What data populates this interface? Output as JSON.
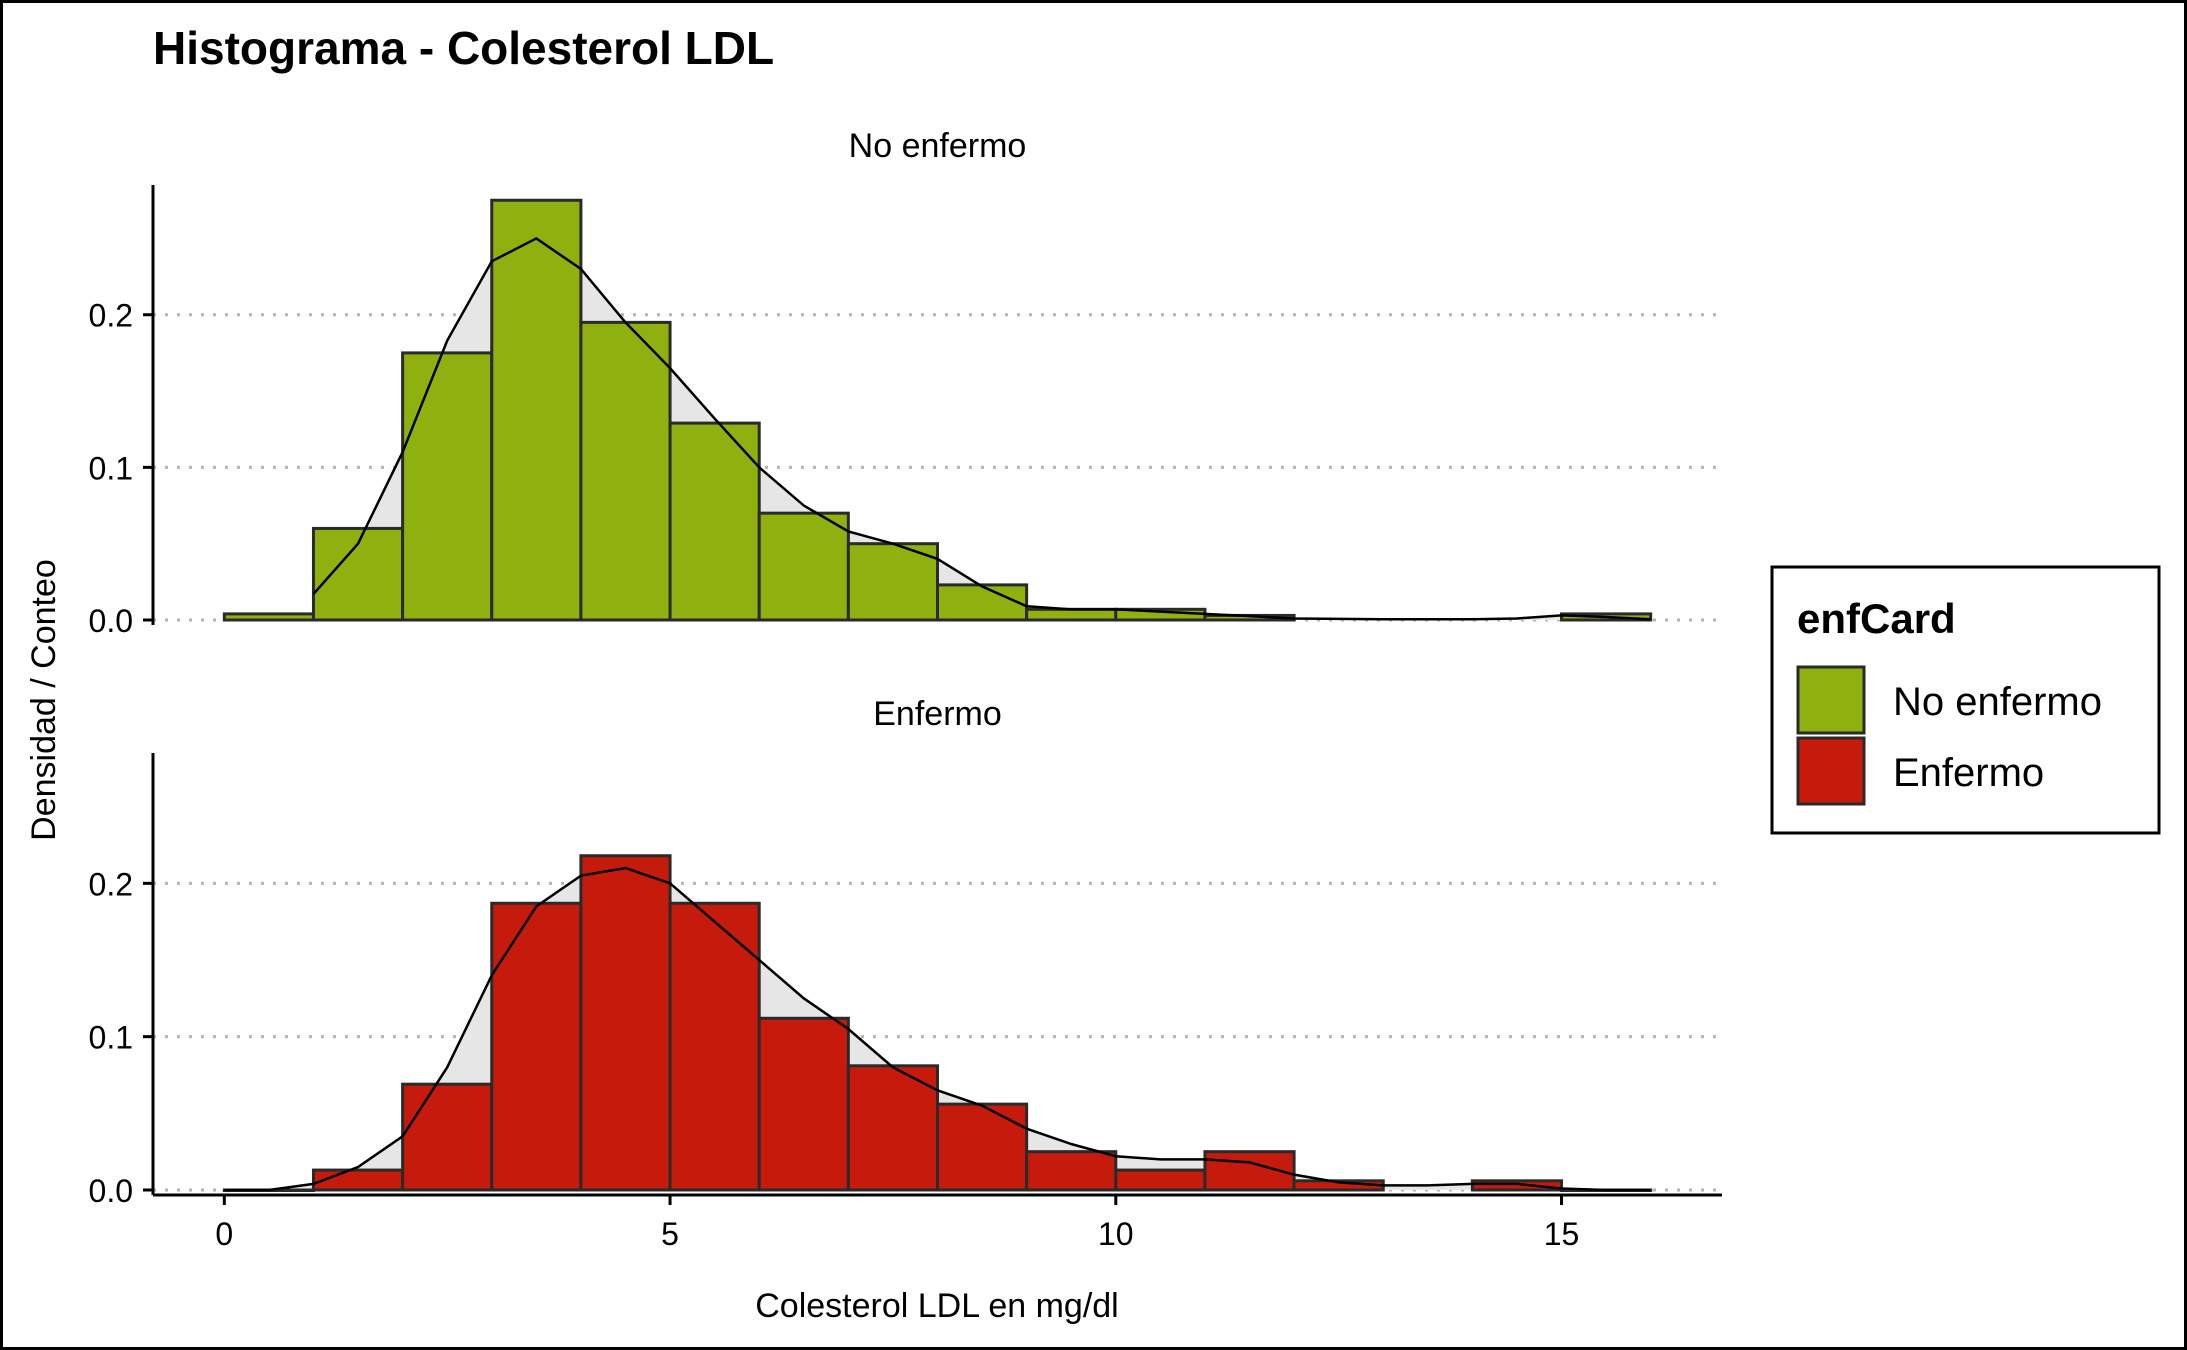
{
  "title": "Histograma - Colesterol LDL",
  "x_label": "Colesterol LDL en mg/dl",
  "y_label": "Densidad / Conteo",
  "x_ticks": [
    0,
    5,
    10,
    15
  ],
  "y_ticks": [
    "0.0",
    "0.1",
    "0.2"
  ],
  "legend": {
    "title": "enfCard",
    "items": [
      {
        "label": "No enfermo",
        "color": "#8FB00F"
      },
      {
        "label": "Enfermo",
        "color": "#C61B0C"
      }
    ]
  },
  "chart_data": {
    "type": "bar",
    "subtype": "faceted-histogram-with-density",
    "xlim": [
      -0.8,
      16.8
    ],
    "ylim": [
      0,
      0.285
    ],
    "bin_width": 1,
    "grid": "horizontal-dotted",
    "legend_position": "right",
    "bar_outline": "#2a2a2a",
    "density_fill": "#e6e6e6",
    "density_stroke": "#000000",
    "panels": [
      {
        "name": "No enfermo",
        "color": "#8FB00F",
        "bins": [
          {
            "x0": 0,
            "x1": 1,
            "value": 0.004
          },
          {
            "x0": 1,
            "x1": 2,
            "value": 0.06
          },
          {
            "x0": 2,
            "x1": 3,
            "value": 0.175
          },
          {
            "x0": 3,
            "x1": 4,
            "value": 0.275
          },
          {
            "x0": 4,
            "x1": 5,
            "value": 0.195
          },
          {
            "x0": 5,
            "x1": 6,
            "value": 0.129
          },
          {
            "x0": 6,
            "x1": 7,
            "value": 0.07
          },
          {
            "x0": 7,
            "x1": 8,
            "value": 0.05
          },
          {
            "x0": 8,
            "x1": 9,
            "value": 0.023
          },
          {
            "x0": 9,
            "x1": 10,
            "value": 0.007
          },
          {
            "x0": 10,
            "x1": 11,
            "value": 0.007
          },
          {
            "x0": 11,
            "x1": 12,
            "value": 0.003
          },
          {
            "x0": 15,
            "x1": 16,
            "value": 0.004
          }
        ],
        "density": {
          "x": [
            1,
            1.5,
            2,
            2.5,
            3,
            3.5,
            4,
            4.5,
            5,
            5.5,
            6,
            6.5,
            7,
            7.5,
            8,
            8.5,
            9,
            9.5,
            10,
            11,
            12,
            13,
            14,
            14.5,
            15,
            15.5,
            16
          ],
          "y": [
            0.017,
            0.05,
            0.11,
            0.183,
            0.235,
            0.25,
            0.23,
            0.195,
            0.165,
            0.132,
            0.1,
            0.075,
            0.058,
            0.05,
            0.04,
            0.022,
            0.009,
            0.007,
            0.007,
            0.004,
            0.001,
            0.0005,
            0.0005,
            0.001,
            0.003,
            0.002,
            0.0005
          ]
        }
      },
      {
        "name": "Enfermo",
        "color": "#C61B0C",
        "bins": [
          {
            "x0": 0,
            "x1": 1,
            "value": 0.0
          },
          {
            "x0": 1,
            "x1": 2,
            "value": 0.013
          },
          {
            "x0": 2,
            "x1": 3,
            "value": 0.069
          },
          {
            "x0": 3,
            "x1": 4,
            "value": 0.187
          },
          {
            "x0": 4,
            "x1": 5,
            "value": 0.218
          },
          {
            "x0": 5,
            "x1": 6,
            "value": 0.187
          },
          {
            "x0": 6,
            "x1": 7,
            "value": 0.112
          },
          {
            "x0": 7,
            "x1": 8,
            "value": 0.081
          },
          {
            "x0": 8,
            "x1": 9,
            "value": 0.056
          },
          {
            "x0": 9,
            "x1": 10,
            "value": 0.025
          },
          {
            "x0": 10,
            "x1": 11,
            "value": 0.013
          },
          {
            "x0": 11,
            "x1": 12,
            "value": 0.025
          },
          {
            "x0": 12,
            "x1": 13,
            "value": 0.006
          },
          {
            "x0": 14,
            "x1": 15,
            "value": 0.006
          },
          {
            "x0": 15,
            "x1": 16,
            "value": 0.0
          }
        ],
        "density": {
          "x": [
            0,
            0.5,
            1,
            1.5,
            2,
            2.5,
            3,
            3.5,
            4,
            4.5,
            5,
            5.5,
            6,
            6.5,
            7,
            7.5,
            8,
            8.5,
            9,
            9.5,
            10,
            10.5,
            11,
            11.5,
            12,
            12.5,
            13,
            13.5,
            14,
            14.5,
            15,
            15.5,
            16
          ],
          "y": [
            0.0,
            0.0,
            0.004,
            0.015,
            0.035,
            0.08,
            0.14,
            0.185,
            0.205,
            0.21,
            0.2,
            0.175,
            0.15,
            0.125,
            0.105,
            0.08,
            0.065,
            0.055,
            0.04,
            0.03,
            0.022,
            0.02,
            0.02,
            0.018,
            0.01,
            0.005,
            0.003,
            0.003,
            0.004,
            0.004,
            0.001,
            0.0,
            0.0
          ]
        }
      }
    ]
  }
}
